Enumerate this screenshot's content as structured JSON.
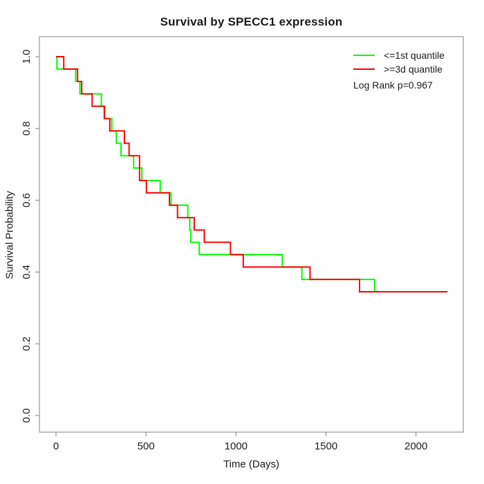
{
  "chart_data": {
    "type": "line",
    "subtype": "kaplan-meier-step-curves",
    "title": "Survival by SPECC1 expression",
    "xlabel": "Time (Days)",
    "ylabel": "Survival Probability",
    "xlim": [
      0,
      2265
    ],
    "ylim": [
      -0.045,
      1.045
    ],
    "xticks": [
      0,
      500,
      1000,
      1500,
      2000
    ],
    "yticks": [
      "0.0",
      "0.2",
      "0.4",
      "0.6",
      "0.8",
      "1.0"
    ],
    "grid": false,
    "legend_position": "top-right",
    "annotation": "Log Rank p=0.967",
    "box_color": "#808080",
    "series": [
      {
        "key": "le-1st-quantile",
        "name": "<=1st quantile",
        "color": "#00ff00",
        "start": [
          0,
          1.0
        ],
        "end_time": 2175,
        "steps": [
          [
            5,
            0.9655
          ],
          [
            109,
            0.931
          ],
          [
            133,
            0.8966
          ],
          [
            252,
            0.8621
          ],
          [
            271,
            0.8276
          ],
          [
            310,
            0.7931
          ],
          [
            335,
            0.7586
          ],
          [
            361,
            0.7241
          ],
          [
            431,
            0.6897
          ],
          [
            477,
            0.6552
          ],
          [
            579,
            0.6207
          ],
          [
            639,
            0.5862
          ],
          [
            732,
            0.5517
          ],
          [
            743,
            0.5172
          ],
          [
            749,
            0.4828
          ],
          [
            796,
            0.4483
          ],
          [
            1257,
            0.4138
          ],
          [
            1366,
            0.3793
          ],
          [
            1770,
            0.3448
          ]
        ]
      },
      {
        "key": "ge-3d-quantile",
        "name": ">=3d quantile",
        "color": "#ff0000",
        "start": [
          0,
          1.0
        ],
        "end_time": 2175,
        "steps": [
          [
            43,
            0.9655
          ],
          [
            120,
            0.931
          ],
          [
            143,
            0.8966
          ],
          [
            201,
            0.8621
          ],
          [
            268,
            0.8276
          ],
          [
            299,
            0.7931
          ],
          [
            380,
            0.7586
          ],
          [
            406,
            0.7241
          ],
          [
            464,
            0.6897
          ],
          [
            464,
            0.6552
          ],
          [
            502,
            0.6207
          ],
          [
            630,
            0.5862
          ],
          [
            675,
            0.5517
          ],
          [
            768,
            0.5172
          ],
          [
            824,
            0.4828
          ],
          [
            969,
            0.4483
          ],
          [
            1040,
            0.4138
          ],
          [
            1411,
            0.3793
          ],
          [
            1686,
            0.3448
          ]
        ]
      }
    ]
  }
}
